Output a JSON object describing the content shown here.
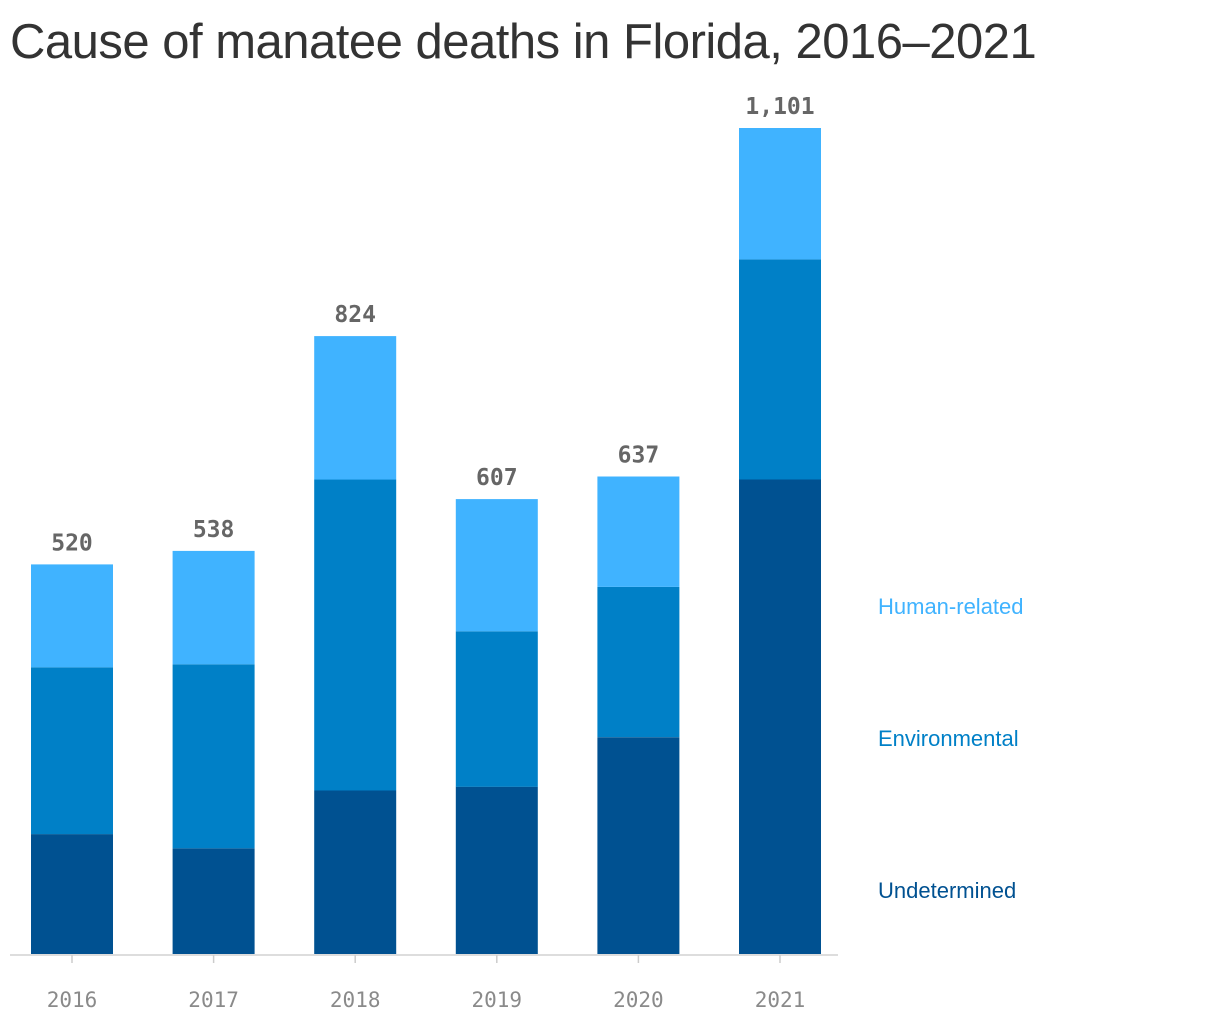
{
  "chart_data": {
    "type": "bar",
    "stacked": true,
    "title": "Cause of manatee deaths in Florida, 2016–2021",
    "categories": [
      "2016",
      "2017",
      "2018",
      "2019",
      "2020",
      "2021"
    ],
    "totals": [
      520,
      538,
      824,
      607,
      637,
      1101
    ],
    "total_labels": [
      "520",
      "538",
      "824",
      "607",
      "637",
      "1,101"
    ],
    "series": [
      {
        "name": "Undetermined",
        "color": "#005191",
        "values": [
          161,
          142,
          219,
          224,
          290,
          633
        ]
      },
      {
        "name": "Environmental",
        "color": "#0080c7",
        "values": [
          222,
          245,
          414,
          207,
          200,
          293
        ]
      },
      {
        "name": "Human-related",
        "color": "#40b3ff",
        "values": [
          137,
          151,
          191,
          176,
          147,
          175
        ]
      }
    ],
    "legend_order": [
      "Human-related",
      "Environmental",
      "Undetermined"
    ],
    "legend_position": "right",
    "ylim": [
      0,
      1101
    ],
    "grid": false,
    "xlabel": "",
    "ylabel": ""
  }
}
